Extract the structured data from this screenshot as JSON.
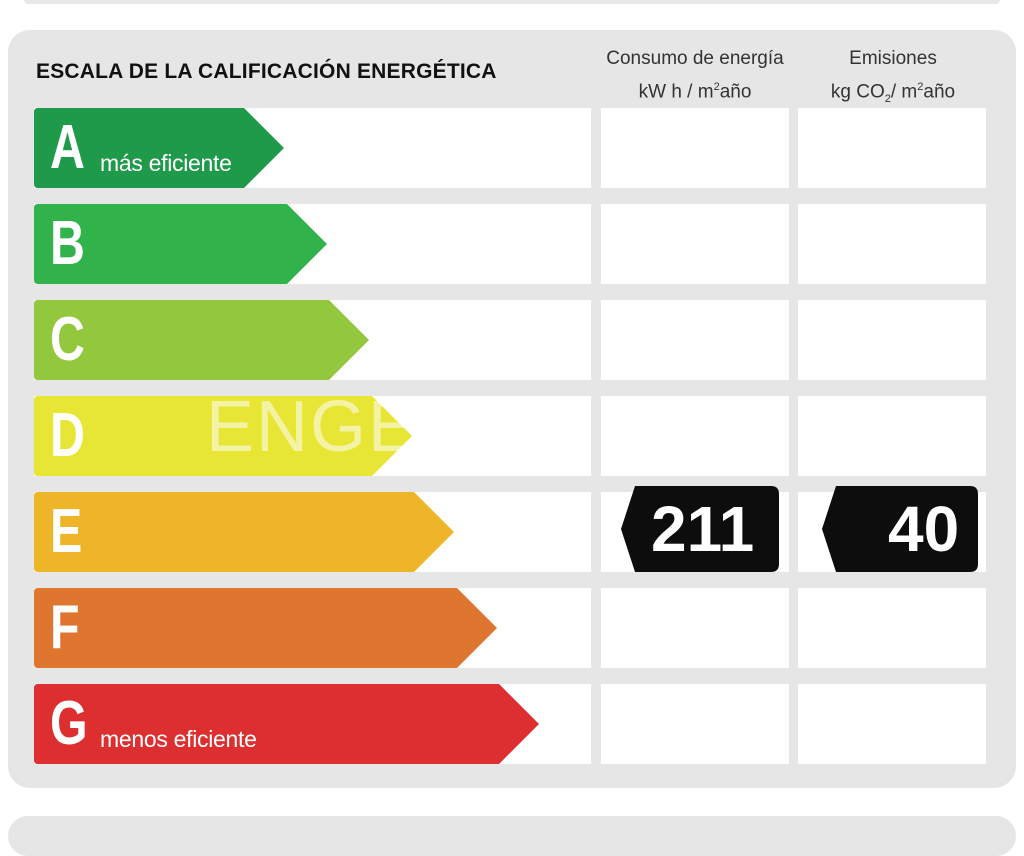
{
  "title": "ESCALA DE LA CALIFICACIÓN ENERGÉTICA",
  "columns": {
    "energy": {
      "line1": "Consumo de energía",
      "unit_prefix": "kW h / m",
      "unit_sup": "2",
      "unit_suffix": "año"
    },
    "emissions": {
      "line1": "Emisiones",
      "unit_a": "kg CO",
      "unit_sub": "2",
      "unit_b": "/ m",
      "unit_sup": "2",
      "unit_suffix": "año"
    }
  },
  "classes": [
    {
      "letter": "A",
      "label": "más eficiente",
      "color": "#1f9a4b"
    },
    {
      "letter": "B",
      "label": "",
      "color": "#32b24a"
    },
    {
      "letter": "C",
      "label": "",
      "color": "#93c83e"
    },
    {
      "letter": "D",
      "label": "",
      "color": "#e8e635"
    },
    {
      "letter": "E",
      "label": "",
      "color": "#efb528"
    },
    {
      "letter": "F",
      "label": "",
      "color": "#df762f"
    },
    {
      "letter": "G",
      "label": "menos eficiente",
      "color": "#dd2e30"
    }
  ],
  "rating": {
    "class": "E",
    "energy_consumption": "211",
    "emissions": "40",
    "badge_color": "#0d0d0d"
  },
  "watermark": "ENGE        S"
}
